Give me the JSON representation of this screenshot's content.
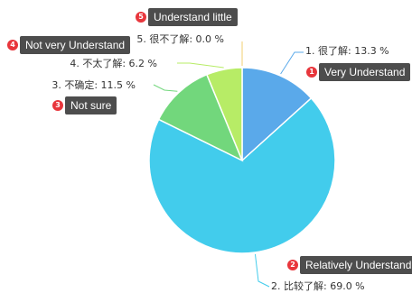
{
  "chart_data": {
    "type": "pie",
    "slices": [
      {
        "label": "1. 很了解: 13.3 %",
        "value": 13.3,
        "color": "#5aa9ea"
      },
      {
        "label": "2. 比较了解: 69.0 %",
        "value": 69.0,
        "color": "#42ccec"
      },
      {
        "label": "3. 不确定: 11.5 %",
        "value": 11.5,
        "color": "#72d77c"
      },
      {
        "label": "4. 不太了解: 6.2 %",
        "value": 6.2,
        "color": "#b7ec66"
      },
      {
        "label": "5. 很不了解: 0.0 %",
        "value": 0.0,
        "color": "#f2cf72"
      }
    ]
  },
  "callouts": [
    {
      "number": "1",
      "text": "Very Understand"
    },
    {
      "number": "2",
      "text": "Relatively Understand"
    },
    {
      "number": "3",
      "text": "Not sure"
    },
    {
      "number": "4",
      "text": "Not very Understand"
    },
    {
      "number": "5",
      "text": "Understand little"
    }
  ]
}
